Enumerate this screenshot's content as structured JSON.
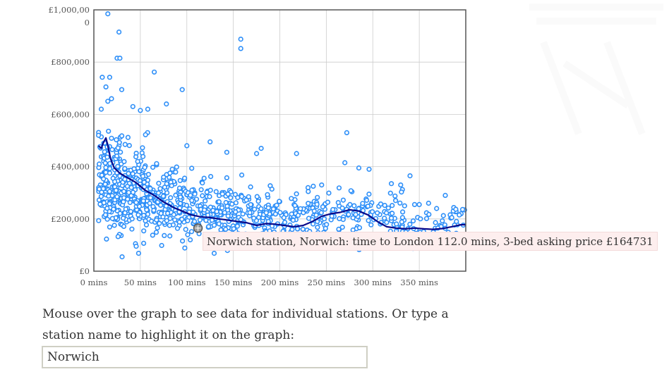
{
  "chart_data": {
    "type": "scatter",
    "title": "",
    "xlabel": "",
    "ylabel": "",
    "xlim": [
      0,
      400
    ],
    "ylim": [
      0,
      1000000
    ],
    "x_ticks": [
      {
        "value": 0,
        "label": "0 mins"
      },
      {
        "value": 50,
        "label": "50 mins"
      },
      {
        "value": 100,
        "label": "100 mins"
      },
      {
        "value": 150,
        "label": "150 mins"
      },
      {
        "value": 200,
        "label": "200 mins"
      },
      {
        "value": 250,
        "label": "250 mins"
      },
      {
        "value": 300,
        "label": "300 mins"
      },
      {
        "value": 350,
        "label": "350 mins"
      }
    ],
    "y_ticks": [
      {
        "value": 0,
        "label": "£0"
      },
      {
        "value": 200000,
        "label": "£200,000"
      },
      {
        "value": 400000,
        "label": "£400,000"
      },
      {
        "value": 600000,
        "label": "£600,000"
      },
      {
        "value": 800000,
        "label": "£800,000"
      },
      {
        "value": 1000000,
        "label": "£1,000,000"
      }
    ],
    "grid": true,
    "points_outliers": [
      [
        15,
        985000
      ],
      [
        27,
        915000
      ],
      [
        158,
        888000
      ],
      [
        158,
        852000
      ],
      [
        25,
        815000
      ],
      [
        28,
        815000
      ],
      [
        65,
        762000
      ],
      [
        9,
        742000
      ],
      [
        17,
        742000
      ],
      [
        95,
        695000
      ],
      [
        13,
        705000
      ],
      [
        30,
        695000
      ],
      [
        19,
        660000
      ],
      [
        15,
        650000
      ],
      [
        78,
        640000
      ],
      [
        58,
        620000
      ],
      [
        50,
        615000
      ],
      [
        42,
        630000
      ],
      [
        8,
        620000
      ],
      [
        272,
        530000
      ],
      [
        5,
        520000
      ],
      [
        125,
        495000
      ],
      [
        180,
        470000
      ],
      [
        175,
        450000
      ],
      [
        143,
        455000
      ],
      [
        218,
        450000
      ],
      [
        100,
        480000
      ],
      [
        270,
        415000
      ],
      [
        285,
        395000
      ],
      [
        296,
        390000
      ],
      [
        340,
        365000
      ],
      [
        320,
        335000
      ],
      [
        330,
        330000
      ],
      [
        245,
        330000
      ],
      [
        236,
        325000
      ],
      [
        378,
        290000
      ],
      [
        360,
        260000
      ],
      [
        350,
        255000
      ],
      [
        345,
        255000
      ],
      [
        395,
        220000
      ],
      [
        393,
        215000
      ],
      [
        385,
        205000
      ],
      [
        370,
        165000
      ]
    ],
    "cluster_seed_bins": [
      {
        "x0": 5,
        "x1": 30,
        "n": 170,
        "mean": 340000,
        "sd": 90000
      },
      {
        "x0": 30,
        "x1": 60,
        "n": 170,
        "mean": 300000,
        "sd": 80000
      },
      {
        "x0": 60,
        "x1": 100,
        "n": 150,
        "mean": 255000,
        "sd": 65000
      },
      {
        "x0": 100,
        "x1": 150,
        "n": 150,
        "mean": 225000,
        "sd": 55000
      },
      {
        "x0": 150,
        "x1": 200,
        "n": 120,
        "mean": 210000,
        "sd": 50000
      },
      {
        "x0": 200,
        "x1": 250,
        "n": 90,
        "mean": 205000,
        "sd": 45000
      },
      {
        "x0": 250,
        "x1": 300,
        "n": 70,
        "mean": 225000,
        "sd": 50000
      },
      {
        "x0": 300,
        "x1": 350,
        "n": 55,
        "mean": 205000,
        "sd": 45000
      },
      {
        "x0": 350,
        "x1": 400,
        "n": 35,
        "mean": 190000,
        "sd": 40000
      }
    ],
    "trend_line": [
      [
        5,
        480000
      ],
      [
        8,
        470000
      ],
      [
        10,
        490000
      ],
      [
        13,
        510000
      ],
      [
        15,
        480000
      ],
      [
        18,
        430000
      ],
      [
        22,
        395000
      ],
      [
        28,
        375000
      ],
      [
        35,
        360000
      ],
      [
        45,
        340000
      ],
      [
        55,
        310000
      ],
      [
        65,
        290000
      ],
      [
        75,
        265000
      ],
      [
        85,
        245000
      ],
      [
        95,
        230000
      ],
      [
        105,
        215000
      ],
      [
        115,
        208000
      ],
      [
        125,
        205000
      ],
      [
        135,
        200000
      ],
      [
        145,
        195000
      ],
      [
        155,
        190000
      ],
      [
        165,
        185000
      ],
      [
        175,
        175000
      ],
      [
        185,
        182000
      ],
      [
        195,
        180000
      ],
      [
        205,
        175000
      ],
      [
        215,
        170000
      ],
      [
        225,
        175000
      ],
      [
        235,
        190000
      ],
      [
        245,
        210000
      ],
      [
        255,
        220000
      ],
      [
        265,
        225000
      ],
      [
        275,
        235000
      ],
      [
        285,
        230000
      ],
      [
        295,
        215000
      ],
      [
        305,
        190000
      ],
      [
        315,
        170000
      ],
      [
        325,
        165000
      ],
      [
        335,
        162000
      ],
      [
        345,
        165000
      ],
      [
        355,
        162000
      ],
      [
        365,
        160000
      ],
      [
        375,
        163000
      ],
      [
        385,
        170000
      ],
      [
        395,
        178000
      ],
      [
        400,
        178000
      ]
    ],
    "highlighted": {
      "x": 112.0,
      "y": 164731
    }
  },
  "tooltip_text": "Norwich station, Norwich: time to London 112.0 mins, 3-bed asking price £164731",
  "instructions": "Mouse over the graph to see data for individual stations. Or type a station name to highlight it on the graph:",
  "search": {
    "value": "Norwich"
  },
  "colors": {
    "point": "#2c8ef8",
    "trend": "#0a0a8a",
    "grid": "#cccccc",
    "axis": "#555555",
    "tooltip_bg": "#fdeeee"
  }
}
